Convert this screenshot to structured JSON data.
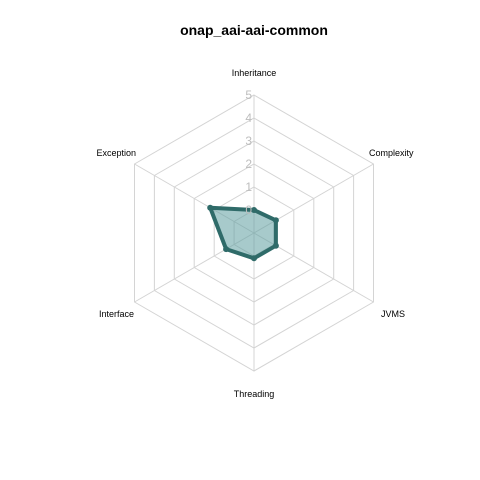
{
  "chart_data": {
    "type": "radar",
    "title": "onap_aai-aai-common",
    "axes": [
      "Inheritance",
      "Complexity",
      "JVMS",
      "Threading",
      "Interface",
      "Exception"
    ],
    "ticks": [
      "0",
      "1",
      "2",
      "3",
      "4",
      "5"
    ],
    "range": [
      -1,
      5
    ],
    "series": [
      {
        "values": [
          0.0,
          0.1,
          0.1,
          0.1,
          0.4,
          1.2
        ]
      }
    ],
    "colors": {
      "line": "#2f6b69",
      "fill": "#5f9ea0",
      "grid": "#d4d4d4",
      "tick": "#bdbdbd"
    }
  }
}
